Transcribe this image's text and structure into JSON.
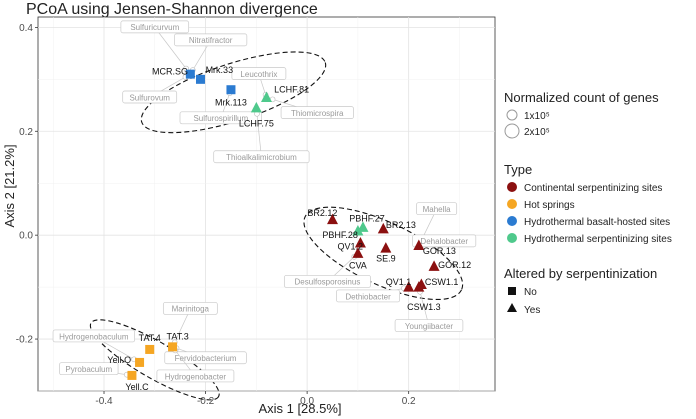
{
  "chart_data": {
    "type": "scatter",
    "title": "PCoA using Jensen-Shannon divergence",
    "xlabel": "Axis 1 [28.5%]",
    "ylabel": "Axis 2 [21.2%]",
    "xlim": [
      -0.53,
      0.37
    ],
    "ylim": [
      -0.3,
      0.42
    ],
    "x_ticks": [
      -0.4,
      -0.2,
      0.0,
      0.2
    ],
    "x_tick_labels": [
      "-0.4",
      "-0.2",
      "0.0",
      "0.2"
    ],
    "y_ticks": [
      -0.2,
      0.0,
      0.2,
      0.4
    ],
    "y_tick_labels": [
      "-0.2",
      "0.0",
      "0.2",
      "0.4"
    ],
    "grid": true,
    "colors": {
      "Continental serpentinizing sites": "#8b1010",
      "Hot springs": "#f5a623",
      "Hydrothermal basalt-hosted sites": "#2b7bd1",
      "Hydrothermal serpentinizing sites": "#4fc98c"
    },
    "points": [
      {
        "label": "MCR.SG",
        "x": -0.23,
        "y": 0.31,
        "type": "Hydrothermal basalt-hosted sites",
        "serp": "No",
        "lx": -0.27,
        "ly": 0.315,
        "anchor": "middle"
      },
      {
        "label": "Mrk.33",
        "x": -0.21,
        "y": 0.3,
        "type": "Hydrothermal basalt-hosted sites",
        "serp": "No",
        "lx": -0.2,
        "ly": 0.318,
        "anchor": "start"
      },
      {
        "label": "Mrk.113",
        "x": -0.15,
        "y": 0.28,
        "type": "Hydrothermal basalt-hosted sites",
        "serp": "No",
        "lx": -0.15,
        "ly": 0.255,
        "anchor": "middle"
      },
      {
        "label": "LCHF.81",
        "x": -0.08,
        "y": 0.265,
        "type": "Hydrothermal serpentinizing sites",
        "serp": "Yes",
        "lx": -0.065,
        "ly": 0.28,
        "anchor": "start"
      },
      {
        "label": "LCHF.75",
        "x": -0.1,
        "y": 0.245,
        "type": "Hydrothermal serpentinizing sites",
        "serp": "Yes",
        "lx": -0.1,
        "ly": 0.215,
        "anchor": "middle"
      },
      {
        "label": "BR2.12",
        "x": 0.05,
        "y": 0.03,
        "type": "Continental serpentinizing sites",
        "serp": "Yes",
        "lx": 0.03,
        "ly": 0.043,
        "anchor": "middle"
      },
      {
        "label": "PBHF.27",
        "x": 0.11,
        "y": 0.015,
        "type": "Hydrothermal serpentinizing sites",
        "serp": "Yes",
        "lx": 0.118,
        "ly": 0.032,
        "anchor": "middle"
      },
      {
        "label": "PBHF.28",
        "x": 0.1,
        "y": 0.008,
        "type": "Hydrothermal serpentinizing sites",
        "serp": "Yes",
        "lx": 0.065,
        "ly": 0.0,
        "anchor": "middle"
      },
      {
        "label": "BR2.13",
        "x": 0.15,
        "y": 0.012,
        "type": "Continental serpentinizing sites",
        "serp": "Yes",
        "lx": 0.155,
        "ly": 0.02,
        "anchor": "start"
      },
      {
        "label": "QV1.2",
        "x": 0.105,
        "y": -0.015,
        "type": "Continental serpentinizing sites",
        "serp": "Yes",
        "lx": 0.085,
        "ly": -0.022,
        "anchor": "middle"
      },
      {
        "label": "SE.9",
        "x": 0.155,
        "y": -0.025,
        "type": "Continental serpentinizing sites",
        "serp": "Yes",
        "lx": 0.155,
        "ly": -0.045,
        "anchor": "middle"
      },
      {
        "label": "CVA",
        "x": 0.1,
        "y": -0.035,
        "type": "Continental serpentinizing sites",
        "serp": "Yes",
        "lx": 0.1,
        "ly": -0.058,
        "anchor": "middle"
      },
      {
        "label": "GOR.13",
        "x": 0.22,
        "y": -0.02,
        "type": "Continental serpentinizing sites",
        "serp": "Yes",
        "lx": 0.228,
        "ly": -0.03,
        "anchor": "start"
      },
      {
        "label": "GOR.12",
        "x": 0.25,
        "y": -0.06,
        "type": "Continental serpentinizing sites",
        "serp": "Yes",
        "lx": 0.258,
        "ly": -0.057,
        "anchor": "start"
      },
      {
        "label": "CSW1.1",
        "x": 0.225,
        "y": -0.095,
        "type": "Continental serpentinizing sites",
        "serp": "Yes",
        "lx": 0.232,
        "ly": -0.09,
        "anchor": "start"
      },
      {
        "label": "QV1.1",
        "x": 0.2,
        "y": -0.1,
        "type": "Continental serpentinizing sites",
        "serp": "Yes",
        "lx": 0.18,
        "ly": -0.09,
        "anchor": "middle"
      },
      {
        "label": "CSW1.3",
        "x": 0.22,
        "y": -0.1,
        "type": "Continental serpentinizing sites",
        "serp": "Yes",
        "lx": 0.23,
        "ly": -0.138,
        "anchor": "middle"
      },
      {
        "label": "TAT.4",
        "x": -0.31,
        "y": -0.22,
        "type": "Hot springs",
        "serp": "No",
        "lx": -0.31,
        "ly": -0.198,
        "anchor": "middle"
      },
      {
        "label": "TAT.3",
        "x": -0.265,
        "y": -0.215,
        "type": "Hot springs",
        "serp": "No",
        "lx": -0.255,
        "ly": -0.195,
        "anchor": "middle"
      },
      {
        "label": "Yell.O",
        "x": -0.33,
        "y": -0.245,
        "type": "Hot springs",
        "serp": "No",
        "lx": -0.37,
        "ly": -0.24,
        "anchor": "middle"
      },
      {
        "label": "Yell.C",
        "x": -0.345,
        "y": -0.27,
        "type": "Hot springs",
        "serp": "No",
        "lx": -0.335,
        "ly": -0.292,
        "anchor": "middle"
      }
    ],
    "taxa": [
      {
        "label": "Sulfuricurvum",
        "x": -0.3,
        "y": 0.4
      },
      {
        "label": "Nitratifractor",
        "x": -0.19,
        "y": 0.375
      },
      {
        "label": "Sulfurovum",
        "x": -0.31,
        "y": 0.265
      },
      {
        "label": "Leucothrix",
        "x": -0.095,
        "y": 0.31
      },
      {
        "label": "Sulfurospirillum",
        "x": -0.17,
        "y": 0.225
      },
      {
        "label": "Thiomicrospira",
        "x": 0.02,
        "y": 0.235
      },
      {
        "label": "Thioalkalimicrobium",
        "x": -0.09,
        "y": 0.15
      },
      {
        "label": "Mahella",
        "x": 0.255,
        "y": 0.05
      },
      {
        "label": "Dehalobacter",
        "x": 0.27,
        "y": -0.012
      },
      {
        "label": "Desulfosporosinus",
        "x": 0.04,
        "y": -0.09
      },
      {
        "label": "Dethiobacter",
        "x": 0.12,
        "y": -0.118
      },
      {
        "label": "Youngiibacter",
        "x": 0.24,
        "y": -0.175
      },
      {
        "label": "Marinitoga",
        "x": -0.23,
        "y": -0.142
      },
      {
        "label": "Hydrogenobaculum",
        "x": -0.42,
        "y": -0.195
      },
      {
        "label": "Fervidobacterium",
        "x": -0.2,
        "y": -0.237
      },
      {
        "label": "Pyrobaculum",
        "x": -0.43,
        "y": -0.258
      },
      {
        "label": "Hydrogenobacter",
        "x": -0.22,
        "y": -0.272
      }
    ],
    "ellipses": [
      {
        "name": "basalt",
        "cx": -0.145,
        "cy": 0.275,
        "rx": 0.19,
        "ry": 0.055,
        "angle": -18
      },
      {
        "name": "continental",
        "cx": 0.15,
        "cy": -0.035,
        "rx": 0.17,
        "ry": 0.06,
        "angle": 25
      },
      {
        "name": "hotsprings",
        "cx": -0.3,
        "cy": -0.24,
        "rx": 0.145,
        "ry": 0.035,
        "angle": 30
      }
    ],
    "legend": {
      "size_title": "Normalized count of genes",
      "size_items": [
        "1x10⁵",
        "2x10⁵"
      ],
      "type_title": "Type",
      "type_items": [
        "Continental serpentinizing sites",
        "Hot springs",
        "Hydrothermal basalt-hosted sites",
        "Hydrothermal serpentinizing sites"
      ],
      "serp_title": "Altered by serpentinization",
      "serp_items": [
        "No",
        "Yes"
      ]
    }
  }
}
